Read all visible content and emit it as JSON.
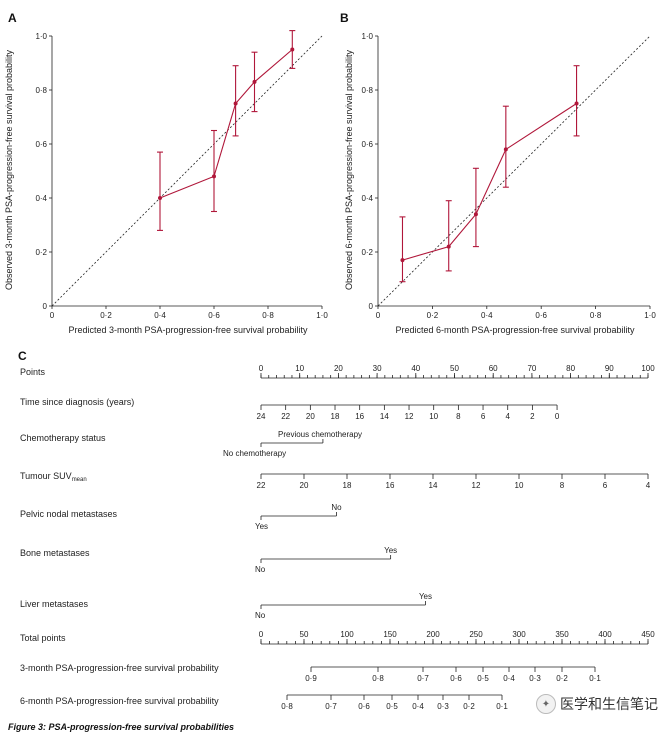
{
  "chart_data": [
    {
      "panel": "A",
      "type": "line",
      "xlabel": "Predicted 3-month PSA-progression-free survival probability",
      "ylabel": "Observed 3-month PSA-progression-free survival probability",
      "xlim": [
        0,
        1
      ],
      "ylim": [
        0,
        1
      ],
      "xticks": [
        0,
        0.2,
        0.4,
        0.6,
        0.8,
        1.0
      ],
      "xtick_labels": [
        "0",
        "0·2",
        "0·4",
        "0·6",
        "0·8",
        "1·0"
      ],
      "yticks": [
        0,
        0.2,
        0.4,
        0.6,
        0.8,
        1.0
      ],
      "ytick_labels": [
        "0",
        "0·2",
        "0·4",
        "0·6",
        "0·8",
        "1·0"
      ],
      "reference_line": "dashed diagonal y = x",
      "series": [
        {
          "name": "Observed",
          "x": [
            0.4,
            0.6,
            0.68,
            0.75,
            0.89
          ],
          "y": [
            0.4,
            0.48,
            0.75,
            0.83,
            0.95
          ],
          "lower": [
            0.28,
            0.35,
            0.63,
            0.72,
            0.88
          ],
          "upper": [
            0.57,
            0.65,
            0.89,
            0.94,
            1.02
          ]
        }
      ]
    },
    {
      "panel": "B",
      "type": "line",
      "xlabel": "Predicted 6-month PSA-progression-free survival probability",
      "ylabel": "Observed 6-month PSA-progression-free survival probability",
      "xlim": [
        0,
        1
      ],
      "ylim": [
        0,
        1
      ],
      "xticks": [
        0,
        0.2,
        0.4,
        0.6,
        0.8,
        1.0
      ],
      "xtick_labels": [
        "0",
        "0·2",
        "0·4",
        "0·6",
        "0·8",
        "1·0"
      ],
      "yticks": [
        0,
        0.2,
        0.4,
        0.6,
        0.8,
        1.0
      ],
      "ytick_labels": [
        "0",
        "0·2",
        "0·4",
        "0·6",
        "0·8",
        "1·0"
      ],
      "reference_line": "dashed diagonal y = x",
      "series": [
        {
          "name": "Observed",
          "x": [
            0.09,
            0.26,
            0.36,
            0.47,
            0.73
          ],
          "y": [
            0.17,
            0.22,
            0.34,
            0.58,
            0.75
          ],
          "lower": [
            0.09,
            0.13,
            0.22,
            0.44,
            0.63
          ],
          "upper": [
            0.33,
            0.39,
            0.51,
            0.74,
            0.89
          ]
        }
      ]
    },
    {
      "panel": "C",
      "type": "nomogram",
      "rows": [
        {
          "label": "Points",
          "ticks": [
            0,
            10,
            20,
            30,
            40,
            50,
            60,
            70,
            80,
            90,
            100
          ],
          "tick_labels": [
            "0",
            "10",
            "20",
            "30",
            "40",
            "50",
            "60",
            "70",
            "80",
            "90",
            "100"
          ],
          "minor": true
        },
        {
          "label": "Time since diagnosis (years)",
          "ticks": [
            24,
            22,
            20,
            18,
            16,
            14,
            12,
            10,
            8,
            6,
            4,
            2,
            0
          ],
          "tick_labels": [
            "24",
            "22",
            "20",
            "18",
            "16",
            "14",
            "12",
            "10",
            "8",
            "6",
            "4",
            "2",
            "0"
          ]
        },
        {
          "label": "Chemotherapy status",
          "levels": [
            "No chemotherapy",
            "Previous chemotherapy"
          ]
        },
        {
          "label": "Tumour SUV",
          "label_sub": "mean",
          "ticks": [
            22,
            20,
            18,
            16,
            14,
            12,
            10,
            8,
            6,
            4
          ],
          "tick_labels": [
            "22",
            "20",
            "18",
            "16",
            "14",
            "12",
            "10",
            "8",
            "6",
            "4"
          ]
        },
        {
          "label": "Pelvic nodal metastases",
          "levels": [
            "Yes",
            "No"
          ]
        },
        {
          "label": "Bone metastases",
          "levels": [
            "No",
            "Yes"
          ]
        },
        {
          "label": "Liver metastases",
          "levels": [
            "No",
            "Yes"
          ]
        },
        {
          "label": "Total points",
          "ticks": [
            0,
            50,
            100,
            150,
            200,
            250,
            300,
            350,
            400,
            450
          ],
          "tick_labels": [
            "0",
            "50",
            "100",
            "150",
            "200",
            "250",
            "300",
            "350",
            "400",
            "450"
          ],
          "minor": true
        },
        {
          "label": "3-month PSA-progression-free survival probability",
          "ticks": [
            0.9,
            0.8,
            0.7,
            0.6,
            0.5,
            0.4,
            0.3,
            0.2,
            0.1
          ],
          "tick_labels": [
            "0·9",
            "0·8",
            "0·7",
            "0·6",
            "0·5",
            "0·4",
            "0·3",
            "0·2",
            "0·1"
          ]
        },
        {
          "label": "6-month PSA-progression-free survival probability",
          "ticks": [
            0.8,
            0.7,
            0.6,
            0.5,
            0.4,
            0.3,
            0.2,
            0.1
          ],
          "tick_labels": [
            "0·8",
            "0·7",
            "0·6",
            "0·5",
            "0·4",
            "0·3",
            "0·2",
            "0·1"
          ]
        }
      ]
    }
  ],
  "figure": {
    "caption": "Figure 3: PSA-progression-free survival probabilities",
    "watermark": "医学和生信笔记",
    "watermark_icon": "wechat-icon"
  }
}
